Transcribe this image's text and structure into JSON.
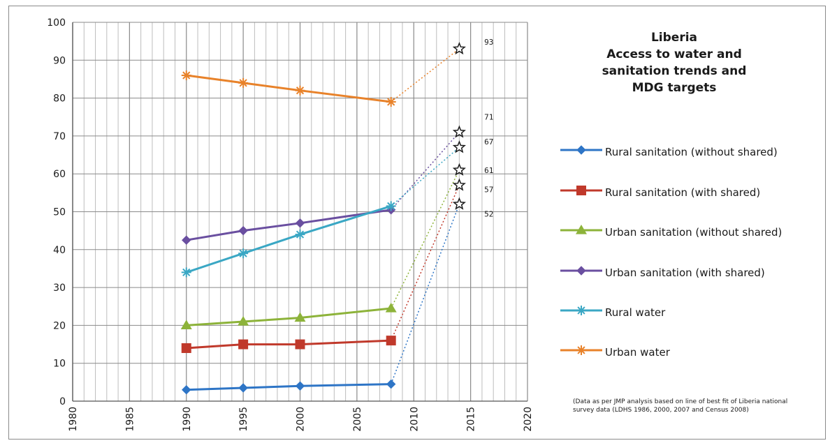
{
  "chart_data": {
    "type": "line",
    "title": [
      "Liberia",
      "Access to water and",
      "sanitation trends and",
      "MDG targets"
    ],
    "xlabel": "",
    "ylabel": "",
    "xlim": [
      1980,
      2020
    ],
    "ylim": [
      0,
      100
    ],
    "x_ticks": [
      "1980",
      "1985",
      "1990",
      "1995",
      "2000",
      "2005",
      "2010",
      "2015",
      "2020"
    ],
    "y_ticks": [
      "0",
      "10",
      "20",
      "30",
      "40",
      "50",
      "60",
      "70",
      "80",
      "90",
      "100"
    ],
    "grid": "major and minor",
    "legend_position": "right",
    "series": [
      {
        "name": "Rural sanitation (without shared)",
        "color": "#2e75c6",
        "marker": "diamond",
        "points": [
          [
            1990,
            3
          ],
          [
            1995,
            3.5
          ],
          [
            2000,
            4
          ],
          [
            2008,
            4.5
          ]
        ]
      },
      {
        "name": "Rural sanitation (with shared)",
        "color": "#c0392b",
        "marker": "square",
        "points": [
          [
            1990,
            14
          ],
          [
            1995,
            15
          ],
          [
            2000,
            15
          ],
          [
            2008,
            16
          ]
        ]
      },
      {
        "name": "Urban sanitation (without shared)",
        "color": "#8db33a",
        "marker": "triangle",
        "points": [
          [
            1990,
            20
          ],
          [
            1995,
            21
          ],
          [
            2000,
            22
          ],
          [
            2008,
            24.5
          ]
        ]
      },
      {
        "name": "Urban sanitation (with shared)",
        "color": "#6a4fa0",
        "marker": "diamond",
        "points": [
          [
            1990,
            42.5
          ],
          [
            1995,
            45
          ],
          [
            2000,
            47
          ],
          [
            2008,
            50.5
          ]
        ]
      },
      {
        "name": "Rural water",
        "color": "#3aa7c4",
        "marker": "asterisk",
        "points": [
          [
            1990,
            34
          ],
          [
            1995,
            39
          ],
          [
            2000,
            44
          ],
          [
            2008,
            51.5
          ]
        ]
      },
      {
        "name": "Urban water",
        "color": "#e8822a",
        "marker": "asterisk",
        "points": [
          [
            1990,
            86
          ],
          [
            1995,
            84
          ],
          [
            2000,
            82
          ],
          [
            2008,
            79
          ]
        ]
      }
    ],
    "targets": [
      {
        "series": "Urban water",
        "year": 2014,
        "value": 93,
        "label": "93"
      },
      {
        "series": "Urban sanitation (with shared)",
        "year": 2014,
        "value": 71,
        "label": "71"
      },
      {
        "series": "Rural water",
        "year": 2014,
        "value": 67,
        "label": "67"
      },
      {
        "series": "Urban sanitation (without shared)",
        "year": 2014,
        "value": 61,
        "label": "61"
      },
      {
        "series": "Rural sanitation (with shared)",
        "year": 2014,
        "value": 57,
        "label": "57"
      },
      {
        "series": "Rural sanitation (without shared)",
        "year": 2014,
        "value": 52,
        "label": "52"
      }
    ],
    "note": "(Data as per JMP analysis based on line of best fit of Liberia national survey data (LDHS 1986, 2000, 2007 and Census 2008)"
  }
}
